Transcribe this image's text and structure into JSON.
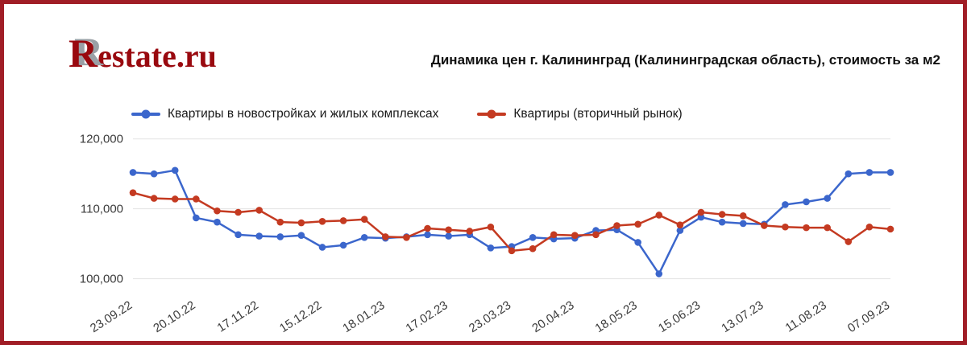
{
  "logo": {
    "letter": "R",
    "rest": "estate.ru",
    "color": "#99090f",
    "shadow_color": "#9aa0a6"
  },
  "header": {
    "title": "Динамика цен г. Калининград (Калининградская область), стоимость за м2"
  },
  "frame": {
    "border_color": "#a01d26",
    "background": "#ffffff"
  },
  "chart_data": {
    "type": "line",
    "title": "Динамика цен г. Калининград (Калининградская область), стоимость за м2",
    "xlabel": "",
    "ylabel": "",
    "ylim": [
      98000,
      121000
    ],
    "grid": true,
    "legend_position": "top",
    "grid_color": "#e3e3e3",
    "axis_label_color": "#3c3c3c",
    "y_ticks": [
      {
        "value": 100000,
        "label": "100,000"
      },
      {
        "value": 110000,
        "label": "110,000"
      },
      {
        "value": 120000,
        "label": "120,000"
      }
    ],
    "x_tick_labels": [
      "23.09.22",
      "20.10.22",
      "17.11.22",
      "15.12.22",
      "18.01.23",
      "17.02.23",
      "23.03.23",
      "20.04.23",
      "18.05.23",
      "15.06.23",
      "13.07.23",
      "11.08.23",
      "07.09.23"
    ],
    "x_tick_indices": [
      0,
      3,
      6,
      9,
      12,
      15,
      18,
      21,
      24,
      27,
      30,
      33,
      36
    ],
    "series": [
      {
        "name": "Квартиры в новостройках и жилых комплексах",
        "color": "#3b66cc",
        "values": [
          115200,
          115000,
          115500,
          108700,
          108100,
          106300,
          106100,
          106000,
          106200,
          104500,
          104800,
          105900,
          105800,
          106000,
          106300,
          106100,
          106300,
          104400,
          104600,
          105900,
          105700,
          105800,
          106900,
          107000,
          105200,
          100700,
          106900,
          108800,
          108100,
          107900,
          107800,
          110600,
          111000,
          111500,
          115000,
          115200,
          115200
        ]
      },
      {
        "name": "Квартиры (вторичный рынок)",
        "color": "#c43a21",
        "values": [
          112300,
          111500,
          111400,
          111400,
          109700,
          109500,
          109800,
          108100,
          108000,
          108200,
          108300,
          108500,
          106000,
          105900,
          107200,
          107000,
          106800,
          107400,
          104000,
          104300,
          106300,
          106200,
          106300,
          107600,
          107800,
          109100,
          107700,
          109500,
          109200,
          109000,
          107600,
          107400,
          107300,
          107300,
          105300,
          107400,
          107100
        ]
      }
    ]
  }
}
